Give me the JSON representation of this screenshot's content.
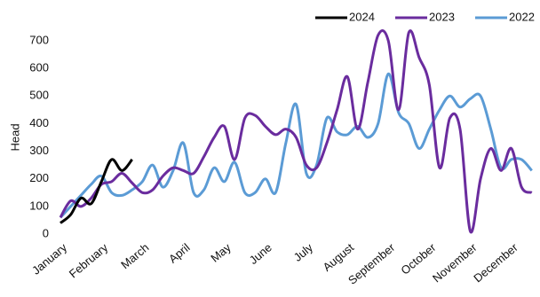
{
  "chart_data": {
    "type": "line",
    "y_label": "Head",
    "x": [
      0,
      0.25,
      0.5,
      0.75,
      1,
      1.25,
      1.5,
      1.75,
      2,
      2.25,
      2.5,
      2.75,
      3,
      3.25,
      3.5,
      3.75,
      4,
      4.25,
      4.5,
      4.75,
      5,
      5.25,
      5.5,
      5.75,
      6,
      6.25,
      6.5,
      6.75,
      7,
      7.25,
      7.5,
      7.75,
      8,
      8.25,
      8.5,
      8.75,
      9,
      9.25,
      9.5,
      9.75,
      10,
      10.25,
      10.5,
      10.75,
      11,
      11.25,
      11.5
    ],
    "xlim": [
      0,
      11.7
    ],
    "xticks": [
      {
        "value": 0,
        "label": "January"
      },
      {
        "value": 1,
        "label": "February"
      },
      {
        "value": 2,
        "label": "March"
      },
      {
        "value": 3,
        "label": "April"
      },
      {
        "value": 4,
        "label": "May"
      },
      {
        "value": 5,
        "label": "June"
      },
      {
        "value": 6,
        "label": "July"
      },
      {
        "value": 7,
        "label": "August"
      },
      {
        "value": 8,
        "label": "September"
      },
      {
        "value": 9,
        "label": "October"
      },
      {
        "value": 10,
        "label": "November"
      },
      {
        "value": 11,
        "label": "December"
      }
    ],
    "ylim": [
      0,
      700
    ],
    "yticks": [
      0,
      100,
      200,
      300,
      400,
      500,
      600,
      700
    ],
    "grid": false,
    "legend": "top-right",
    "series": [
      {
        "name": "2024",
        "color": "#000000",
        "values": [
          40,
          70,
          130,
          110,
          190,
          270,
          230,
          270,
          null,
          null,
          null,
          null,
          null,
          null,
          null,
          null,
          null,
          null,
          null,
          null,
          null,
          null,
          null,
          null,
          null,
          null,
          null,
          null,
          null,
          null,
          null,
          null,
          null,
          null,
          null,
          null,
          null,
          null,
          null,
          null,
          null,
          null,
          null,
          null,
          null,
          null,
          null
        ]
      },
      {
        "name": "2023",
        "color": "#6a2c9e",
        "values": [
          60,
          120,
          100,
          130,
          180,
          190,
          220,
          185,
          150,
          160,
          210,
          240,
          230,
          220,
          280,
          350,
          390,
          270,
          420,
          430,
          390,
          360,
          380,
          350,
          250,
          240,
          330,
          450,
          570,
          380,
          550,
          720,
          700,
          450,
          730,
          640,
          540,
          240,
          420,
          380,
          10,
          200,
          310,
          230,
          310,
          170,
          150
        ]
      },
      {
        "name": "2022",
        "color": "#5b9bd5",
        "values": [
          60,
          100,
          140,
          180,
          210,
          150,
          140,
          160,
          190,
          250,
          170,
          230,
          330,
          150,
          160,
          240,
          190,
          260,
          150,
          150,
          200,
          150,
          330,
          470,
          220,
          250,
          420,
          370,
          360,
          390,
          350,
          400,
          580,
          440,
          400,
          310,
          380,
          450,
          500,
          460,
          490,
          500,
          380,
          240,
          270,
          270,
          230
        ]
      }
    ]
  }
}
